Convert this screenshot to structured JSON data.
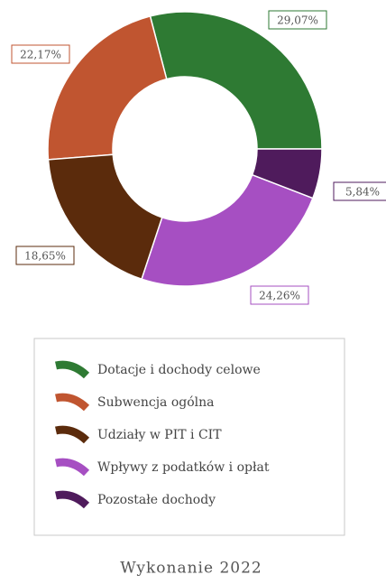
{
  "chart_data": {
    "type": "donut",
    "title": "Wykonanie 2022",
    "categories": [
      "Dotacje i dochody celowe",
      "Subwencja ogólna",
      "Udziały w PIT i CIT",
      "Wpływy z podatków i opłat",
      "Pozostałe dochody"
    ],
    "values": [
      29.07,
      22.17,
      18.65,
      24.26,
      5.84
    ],
    "value_labels": [
      "29,07%",
      "22,17%",
      "18,65%",
      "24,26%",
      "5,84%"
    ],
    "colors": [
      "#2e7a33",
      "#c05530",
      "#5b2b0c",
      "#a64fc2",
      "#4f1b5c"
    ]
  }
}
